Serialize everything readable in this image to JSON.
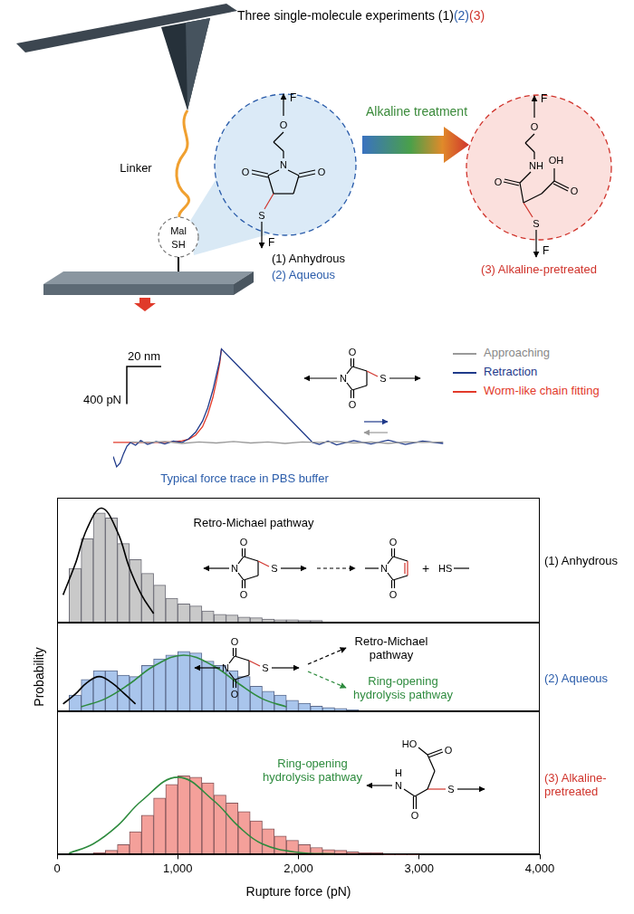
{
  "chart_data": [
    {
      "type": "line",
      "series": [
        {
          "name": "Approaching",
          "color": "#9a9a9a",
          "x": [
            10,
            20,
            30,
            40,
            50,
            60,
            70,
            80,
            90,
            100,
            110,
            120,
            130,
            140,
            150,
            160,
            170,
            180,
            192
          ],
          "values": [
            5,
            0,
            10,
            -10,
            5,
            -5,
            10,
            -5,
            5,
            -10,
            5,
            0,
            10,
            -5,
            5,
            -10,
            5,
            0,
            5
          ]
        },
        {
          "name": "Retraction",
          "color": "#1f3a8a",
          "x": [
            0,
            2,
            4,
            6,
            8,
            10,
            13,
            16,
            20,
            25,
            30,
            35,
            40,
            44,
            48,
            52,
            55,
            58,
            60,
            62,
            63,
            70,
            80,
            90,
            100,
            110,
            116,
            120,
            125,
            130,
            140,
            150,
            160,
            170,
            180,
            192
          ],
          "values": [
            -150,
            -260,
            -220,
            -120,
            -40,
            0,
            -30,
            20,
            -20,
            10,
            -15,
            15,
            0,
            40,
            110,
            230,
            370,
            560,
            720,
            880,
            1000,
            868,
            679,
            491,
            302,
            113,
            0,
            -20,
            15,
            -25,
            20,
            -15,
            25,
            -20,
            15,
            -10
          ]
        },
        {
          "name": "Worm-like chain fitting",
          "color": "#e23a2a",
          "x": [
            0,
            10,
            20,
            30,
            35,
            40,
            44,
            48,
            52,
            55,
            58,
            60,
            62,
            63
          ],
          "values": [
            0,
            0,
            0,
            2,
            8,
            18,
            35,
            80,
            170,
            300,
            480,
            650,
            850,
            1000
          ]
        }
      ],
      "xlim": [
        0,
        195
      ],
      "ylim": [
        -300,
        1150
      ],
      "tick_labels": false,
      "grid": false,
      "legend": "right",
      "caption": "Typical force trace in PBS buffer",
      "scale_bar": {
        "x": 20,
        "x_label": "20 nm",
        "y": 400,
        "y_label": "400 pN"
      }
    },
    {
      "type": "histogram",
      "label": "(1) Anhydrous",
      "bins": [
        100,
        200,
        300,
        400,
        500,
        600,
        700,
        800,
        900,
        1000,
        1100,
        1200,
        1300,
        1400,
        1500,
        1600,
        1700,
        1800,
        1900,
        2000,
        2100,
        2200,
        2300,
        2400
      ],
      "values": [
        0.078,
        0.121,
        0.158,
        0.151,
        0.114,
        0.091,
        0.071,
        0.054,
        0.035,
        0.027,
        0.024,
        0.017,
        0.012,
        0.011,
        0.008,
        0.007,
        0.005,
        0.004,
        0.004,
        0.003,
        0.003,
        0.001,
        0.001
      ],
      "color": "#c9c9c9",
      "fits": [
        {
          "color": "#000000",
          "x": [
            50,
            150,
            250,
            370,
            500,
            600,
            700,
            800
          ],
          "values": [
            0.04,
            0.084,
            0.136,
            0.165,
            0.131,
            0.079,
            0.04,
            0.013
          ]
        }
      ],
      "xlim": [
        0,
        4000
      ],
      "ylim": [
        0,
        0.18
      ],
      "tick_labels": false,
      "grid": false,
      "annotations": [
        {
          "text": "Retro-Michael pathway",
          "color": "#000000"
        }
      ]
    },
    {
      "type": "histogram",
      "label": "(2) Aqueous",
      "ylabel": "Probability",
      "bins": [
        100,
        200,
        300,
        400,
        500,
        600,
        700,
        800,
        900,
        1000,
        1100,
        1200,
        1300,
        1400,
        1500,
        1600,
        1700,
        1800,
        1900,
        2000,
        2100,
        2200,
        2300,
        2400,
        2500
      ],
      "values": [
        0.022,
        0.043,
        0.055,
        0.055,
        0.049,
        0.047,
        0.062,
        0.071,
        0.076,
        0.081,
        0.079,
        0.068,
        0.062,
        0.055,
        0.047,
        0.034,
        0.027,
        0.022,
        0.015,
        0.011,
        0.007,
        0.005,
        0.004,
        0.002
      ],
      "color": "#a9c5ec",
      "fits": [
        {
          "color": "#000000",
          "x": [
            50,
            150,
            250,
            350,
            450,
            550,
            650
          ],
          "values": [
            0.01,
            0.023,
            0.039,
            0.047,
            0.039,
            0.025,
            0.01
          ]
        },
        {
          "color": "#2e8b3e",
          "x": [
            200,
            400,
            600,
            800,
            1050,
            1300,
            1500,
            1700,
            1900
          ],
          "values": [
            0.006,
            0.017,
            0.037,
            0.061,
            0.076,
            0.061,
            0.038,
            0.017,
            0.006
          ]
        }
      ],
      "xlim": [
        0,
        4000
      ],
      "ylim": [
        0,
        0.12
      ],
      "tick_labels": false,
      "grid": false,
      "annotations": [
        {
          "text": "Retro-Michael pathway",
          "color": "#000000"
        },
        {
          "text": "Ring-opening hydrolysis pathway",
          "color": "#2e8b3e"
        }
      ]
    },
    {
      "type": "histogram",
      "label": "(3) Alkaline-pretreated",
      "xlabel": "Rupture force (pN)",
      "bins": [
        300,
        400,
        500,
        600,
        700,
        800,
        900,
        1000,
        1100,
        1200,
        1300,
        1400,
        1500,
        1600,
        1700,
        1800,
        1900,
        2000,
        2100,
        2200,
        2300,
        2400,
        2500,
        2600,
        2700,
        2800,
        2900,
        3000
      ],
      "values": [
        0.003,
        0.006,
        0.014,
        0.032,
        0.055,
        0.079,
        0.098,
        0.11,
        0.108,
        0.1,
        0.083,
        0.072,
        0.06,
        0.047,
        0.036,
        0.026,
        0.02,
        0.014,
        0.01,
        0.007,
        0.006,
        0.004,
        0.003,
        0.003,
        0.001,
        0.001,
        0.001
      ],
      "color": "#f4a09a",
      "fits": [
        {
          "color": "#2e8b3e",
          "x": [
            100,
            300,
            500,
            700,
            1000,
            1300,
            1500,
            1700,
            2000,
            2300
          ],
          "values": [
            0.002,
            0.015,
            0.04,
            0.075,
            0.108,
            0.075,
            0.04,
            0.015,
            0.003,
            0.001
          ]
        }
      ],
      "xlim": [
        0,
        4000
      ],
      "ylim": [
        0,
        0.2
      ],
      "xticks": [
        0,
        {
          "value": 1000,
          "label": "1,000"
        },
        {
          "value": 2000,
          "label": "2,000"
        },
        {
          "value": 3000,
          "label": "3,000"
        },
        {
          "value": 4000,
          "label": "4,000"
        }
      ],
      "tick_labels": "x",
      "grid": false,
      "annotations": [
        {
          "text": "Ring-opening hydrolysis pathway",
          "color": "#2e8b3e"
        }
      ]
    }
  ],
  "diagram": {
    "title": "Three single-molecule experiments",
    "title_marks": [
      {
        "text": "(1)",
        "color": "#000000"
      },
      {
        "text": "(2)",
        "color": "#2a5caa"
      },
      {
        "text": "(3)",
        "color": "#d0342c"
      }
    ],
    "treatment": "Alkaline treatment",
    "linker": "Linker",
    "bead": [
      "Mal",
      "SH"
    ],
    "conditions": [
      {
        "text": "(1) Anhydrous",
        "color": "#000000"
      },
      {
        "text": "(2) Aqueous",
        "color": "#2a5caa"
      },
      {
        "text": "(3) Alkaline-pretreated",
        "color": "#d0342c"
      }
    ],
    "atoms": {
      "force": "F",
      "oxygen": "O",
      "nitrogen": "N",
      "sulfur": "S",
      "hydrogen": "H",
      "amine": "NH",
      "hydroxyl": "OH",
      "hydroxyl_left": "HO",
      "thiol": "HS",
      "plus": "+"
    }
  }
}
